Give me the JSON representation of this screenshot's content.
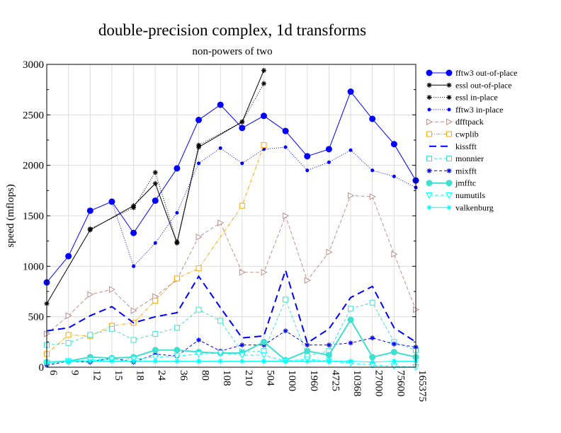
{
  "chart_data": {
    "type": "line",
    "title": "double-precision complex, 1d transforms",
    "subtitle": "non-powers of two",
    "xlabel": "",
    "ylabel": "speed (mflops)",
    "ylim": [
      0,
      3000
    ],
    "yticks": [
      0,
      500,
      1000,
      1500,
      2000,
      2500,
      3000
    ],
    "grid": true,
    "legend_position": "right",
    "categories": [
      "6",
      "9",
      "12",
      "15",
      "18",
      "24",
      "36",
      "80",
      "108",
      "210",
      "504",
      "1000",
      "1960",
      "4725",
      "10368",
      "27000",
      "75600",
      "165375"
    ],
    "series": [
      {
        "name": "fftw3 out-of-place",
        "color": "#0000ff",
        "dash": "",
        "marker": "circle-big",
        "width": 1,
        "values": [
          840,
          1100,
          1550,
          1640,
          1330,
          1650,
          1970,
          2450,
          2600,
          2370,
          2490,
          2340,
          2090,
          2160,
          2730,
          2460,
          2210,
          1850
        ]
      },
      {
        "name": "essl out-of-place",
        "color": "#000000",
        "dash": "",
        "marker": "star",
        "width": 1,
        "values": [
          630,
          null,
          1360,
          null,
          1600,
          1820,
          1230,
          2180,
          null,
          2430,
          2940,
          null,
          null,
          null,
          null,
          null,
          null,
          null
        ]
      },
      {
        "name": "essl in-place",
        "color": "#000000",
        "dash": "1,2",
        "marker": "star",
        "width": 1,
        "values": [
          null,
          null,
          1370,
          null,
          1580,
          1930,
          1240,
          2200,
          null,
          2430,
          2810,
          null,
          null,
          null,
          null,
          null,
          null,
          null
        ]
      },
      {
        "name": "fftw3 in-place",
        "color": "#0000ff",
        "dash": "1,2",
        "marker": "circle-small",
        "width": 1,
        "values": [
          null,
          null,
          null,
          1640,
          1000,
          1230,
          1530,
          2020,
          2170,
          2020,
          2160,
          2180,
          1950,
          2030,
          2150,
          1950,
          1890,
          1780
        ]
      },
      {
        "name": "dfftpack",
        "color": "#bc8f8f",
        "dash": "5,3",
        "marker": "triangle-right",
        "width": 1,
        "values": [
          330,
          510,
          720,
          770,
          560,
          700,
          870,
          1290,
          1430,
          940,
          940,
          1500,
          860,
          1140,
          1700,
          1690,
          1120,
          570
        ]
      },
      {
        "name": "cwplib",
        "color": "#ffa500",
        "dash": "5,2,1,2",
        "marker": "square",
        "width": 1,
        "values": [
          130,
          320,
          310,
          410,
          440,
          660,
          880,
          980,
          null,
          1600,
          2200,
          null,
          null,
          null,
          null,
          null,
          null,
          null
        ]
      },
      {
        "name": "kissfft",
        "color": "#0000ff",
        "dash": "10,6",
        "marker": "none",
        "width": 2,
        "values": [
          360,
          390,
          510,
          600,
          440,
          500,
          540,
          900,
          590,
          290,
          310,
          960,
          240,
          380,
          690,
          800,
          390,
          250
        ]
      },
      {
        "name": "monnier",
        "color": "#40e0d0",
        "dash": "4,3",
        "marker": "square",
        "width": 1,
        "values": [
          220,
          240,
          320,
          380,
          270,
          330,
          390,
          570,
          460,
          150,
          160,
          670,
          110,
          160,
          580,
          640,
          250,
          170
        ]
      },
      {
        "name": "mixfft",
        "color": "#0000ff",
        "dash": "4,3",
        "marker": "star",
        "width": 1,
        "values": [
          20,
          60,
          50,
          90,
          50,
          130,
          110,
          270,
          160,
          220,
          220,
          360,
          220,
          220,
          240,
          290,
          230,
          200
        ]
      },
      {
        "name": "jmfftc",
        "color": "#40e0d0",
        "dash": "",
        "marker": "circle-big",
        "width": 2,
        "values": [
          50,
          60,
          100,
          90,
          100,
          170,
          170,
          150,
          140,
          140,
          250,
          70,
          160,
          120,
          470,
          100,
          150,
          100
        ]
      },
      {
        "name": "numutils",
        "color": "#00ffff",
        "dash": "5,3",
        "marker": "triangle-down",
        "width": 1,
        "values": [
          40,
          60,
          70,
          80,
          80,
          100,
          110,
          130,
          140,
          120,
          120,
          60,
          80,
          60,
          40,
          20,
          10,
          0
        ]
      },
      {
        "name": "valkenburg",
        "color": "#00ffff",
        "dash": "",
        "marker": "star",
        "width": 1,
        "values": [
          50,
          60,
          60,
          60,
          60,
          60,
          60,
          60,
          60,
          60,
          60,
          60,
          60,
          60,
          60,
          50,
          60,
          60
        ]
      }
    ]
  }
}
